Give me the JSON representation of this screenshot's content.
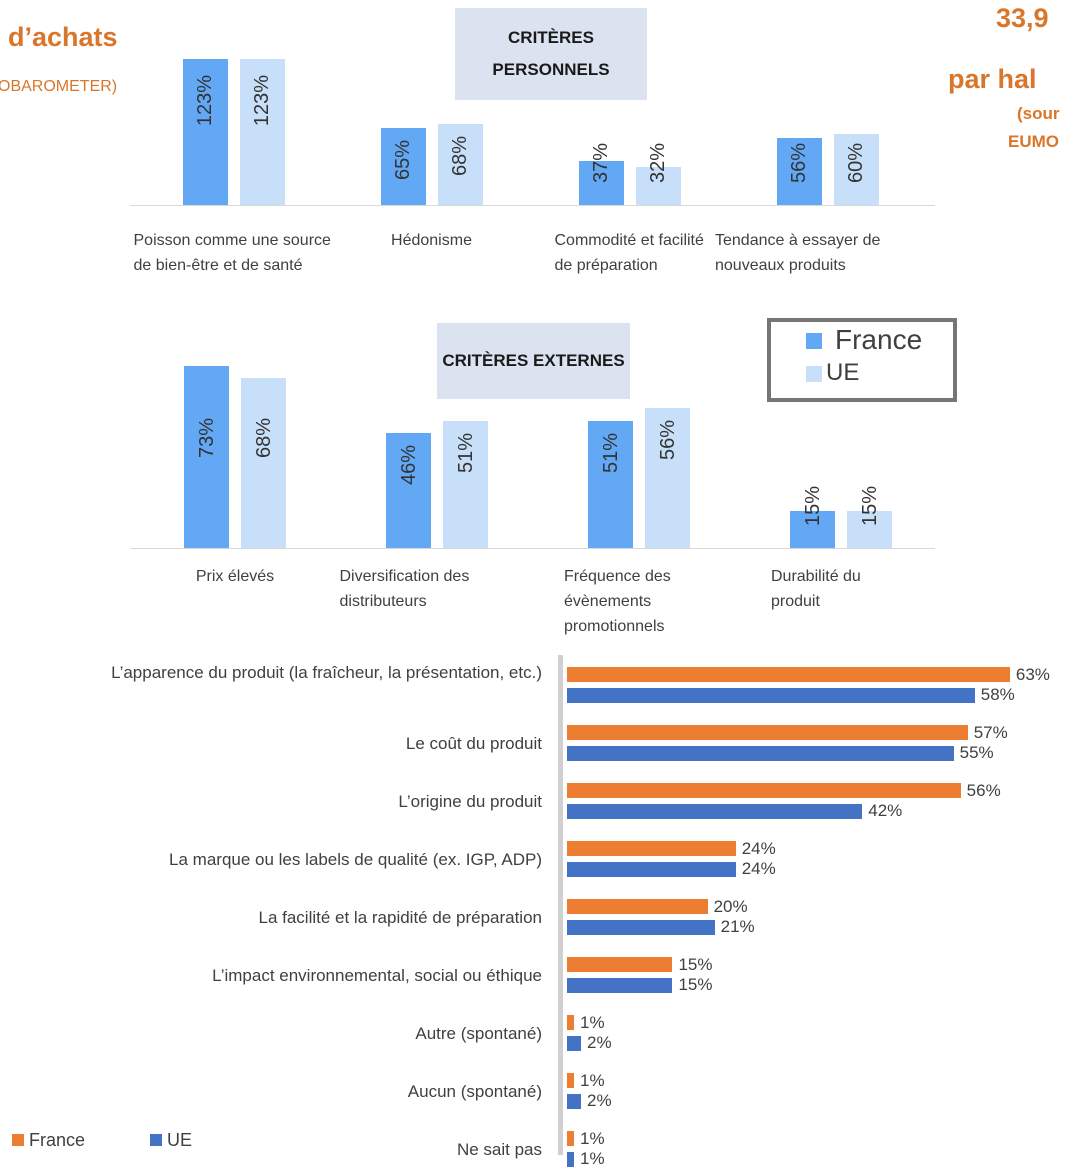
{
  "fragments": {
    "left_heading": "d’achats",
    "left_source": "OBAROMETER)",
    "right_number": "33,9",
    "right_heading": "par hal",
    "right_source_1": "(sour",
    "right_source_2": "EUMO"
  },
  "chart_data": [
    {
      "type": "bar",
      "title": "CRITÈRES PERSONNELS",
      "categories": [
        "Poisson comme une source de bien-être et de santé",
        "Hédonisme",
        "Commodité et facilité de préparation",
        "Tendance à essayer de nouveaux produits"
      ],
      "series": [
        {
          "color": "#62a8f5",
          "values": [
            123,
            65,
            37,
            56
          ],
          "value_labels": [
            "123%",
            "65%",
            "37%",
            "56%"
          ]
        },
        {
          "color": "#c7dff8",
          "values": [
            123,
            68,
            32,
            60
          ],
          "value_labels": [
            "123%",
            "68%",
            "32%",
            "60%"
          ]
        }
      ]
    },
    {
      "type": "bar",
      "title": "CRITÈRES EXTERNES",
      "categories": [
        "Prix élevés",
        "Diversification des distributeurs",
        "Fréquence des évènements promotionnels",
        "Durabilité du produit"
      ],
      "series": [
        {
          "name": "France",
          "color": "#62a8f5",
          "values": [
            73,
            46,
            51,
            15
          ],
          "value_labels": [
            "73%",
            "46%",
            "51%",
            "15%"
          ]
        },
        {
          "name": "UE",
          "color": "#c7dff8",
          "values": [
            68,
            51,
            56,
            15
          ],
          "value_labels": [
            "68%",
            "51%",
            "56%",
            "15%"
          ]
        }
      ]
    },
    {
      "type": "barh",
      "categories": [
        "L’apparence du produit (la fraîcheur, la présentation, etc.)",
        "Le coût du produit",
        "L’origine du produit",
        "La marque ou les labels de qualité (ex. IGP, ADP)",
        "La facilité et la rapidité de préparation",
        "L’impact environnemental, social ou éthique",
        "Autre (spontané)",
        "Aucun (spontané)",
        "Ne sait pas"
      ],
      "series": [
        {
          "name": "France",
          "color": "#ed7d31",
          "values": [
            63,
            57,
            56,
            24,
            20,
            15,
            1,
            1,
            1
          ],
          "value_labels": [
            "63%",
            "57%",
            "56%",
            "24%",
            "20%",
            "15%",
            "1%",
            "1%",
            "1%"
          ]
        },
        {
          "name": "UE",
          "color": "#4472c4",
          "values": [
            58,
            55,
            42,
            24,
            21,
            15,
            2,
            2,
            1
          ],
          "value_labels": [
            "58%",
            "55%",
            "42%",
            "24%",
            "21%",
            "15%",
            "2%",
            "2%",
            "1%"
          ]
        }
      ]
    }
  ]
}
